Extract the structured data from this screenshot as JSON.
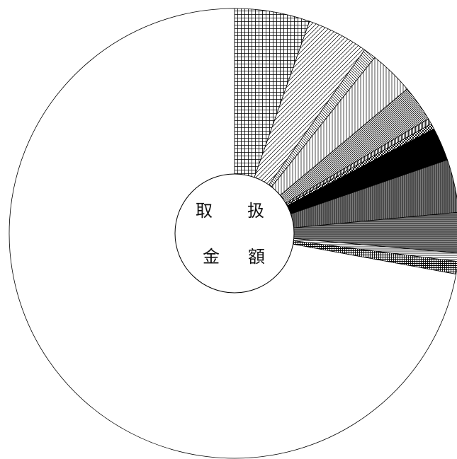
{
  "center_label": {
    "line1_left": "取",
    "line1_right": "扱",
    "line2_left": "金",
    "line2_right": "額"
  },
  "chart_data": {
    "type": "pie",
    "title": "",
    "center_text": "取扱金額",
    "slices": [
      {
        "value": 5.4,
        "pattern": "grid-fine"
      },
      {
        "value": 4.4,
        "pattern": "diag-left"
      },
      {
        "value": 0.9,
        "pattern": "diag-right"
      },
      {
        "value": 3.2,
        "pattern": "vertical"
      },
      {
        "value": 2.6,
        "pattern": "diag-right-dense"
      },
      {
        "value": 0.4,
        "pattern": "vertical-fine"
      },
      {
        "value": 0.4,
        "pattern": "checker"
      },
      {
        "value": 2.4,
        "pattern": "solid-black"
      },
      {
        "value": 3.8,
        "pattern": "vertical-gray"
      },
      {
        "value": 2.9,
        "pattern": "horizontal-gray"
      },
      {
        "value": 0.6,
        "pattern": "horizontal-fine"
      },
      {
        "value": 0.9,
        "pattern": "grid-dense"
      },
      {
        "value": 72.1,
        "pattern": "none"
      }
    ],
    "start_angle_deg": 0,
    "direction": "clockwise"
  }
}
